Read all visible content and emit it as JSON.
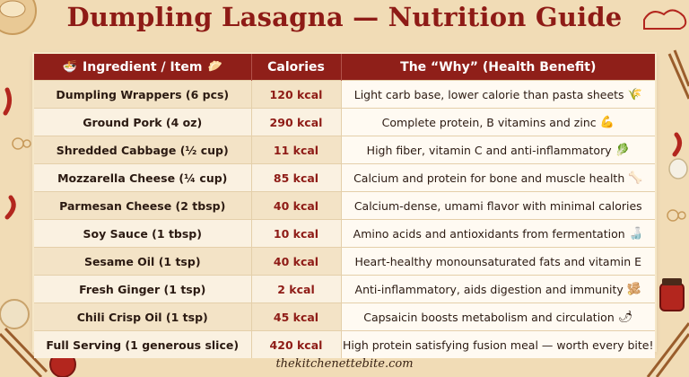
{
  "title": "Dumpling Lasagna — Nutrition Guide",
  "footer": "thekitchenettebite.com",
  "headers": {
    "ingredient": "Ingredient / Item",
    "calories": "Calories",
    "why": "The “Why” (Health Benefit)"
  },
  "icons": {
    "ingredient_left": "noodle-bowl-icon",
    "ingredient_right": "dumpling-icon"
  },
  "rows": [
    {
      "ingredient": "Dumpling Wrappers (6 pcs)",
      "calories": "120 kcal",
      "why": "Light carb base, lower calorie than pasta sheets",
      "icon": "wheat-icon",
      "glyph": "🌾"
    },
    {
      "ingredient": "Ground Pork (4 oz)",
      "calories": "290 kcal",
      "why": "Complete protein, B vitamins and zinc",
      "icon": "flexed-bicep-icon",
      "glyph": "💪"
    },
    {
      "ingredient": "Shredded Cabbage (½ cup)",
      "calories": "11 kcal",
      "why": "High fiber, vitamin C and anti-inflammatory",
      "icon": "cabbage-icon",
      "glyph": "🥬"
    },
    {
      "ingredient": "Mozzarella Cheese (¼ cup)",
      "calories": "85 kcal",
      "why": "Calcium and protein for bone and muscle health",
      "icon": "bone-icon",
      "glyph": "🦴"
    },
    {
      "ingredient": "Parmesan Cheese (2 tbsp)",
      "calories": "40 kcal",
      "why": "Calcium-dense, umami flavor with minimal calories",
      "icon": "",
      "glyph": ""
    },
    {
      "ingredient": "Soy Sauce (1 tbsp)",
      "calories": "10 kcal",
      "why": "Amino acids and antioxidants from fermentation",
      "icon": "soy-sauce-bottle-icon",
      "glyph": "🍶"
    },
    {
      "ingredient": "Sesame Oil (1 tsp)",
      "calories": "40 kcal",
      "why": "Heart-healthy monounsaturated fats and vitamin E",
      "icon": "",
      "glyph": ""
    },
    {
      "ingredient": "Fresh Ginger (1 tsp)",
      "calories": "2 kcal",
      "why": "Anti-inflammatory, aids digestion and immunity",
      "icon": "ginger-root-icon",
      "glyph": "🫚"
    },
    {
      "ingredient": "Chili Crisp Oil (1 tsp)",
      "calories": "45 kcal",
      "why": "Capsaicin boosts metabolism and circulation",
      "icon": "chili-pepper-icon",
      "glyph": "🌶"
    },
    {
      "ingredient": "Full Serving (1 generous slice)",
      "calories": "420 kcal",
      "why": "High protein satisfying fusion meal — worth every bite!",
      "icon": "",
      "glyph": ""
    }
  ],
  "colors": {
    "accent": "#8e1b16",
    "header_bg": "#8f1f19",
    "background": "#f1dcb6"
  }
}
